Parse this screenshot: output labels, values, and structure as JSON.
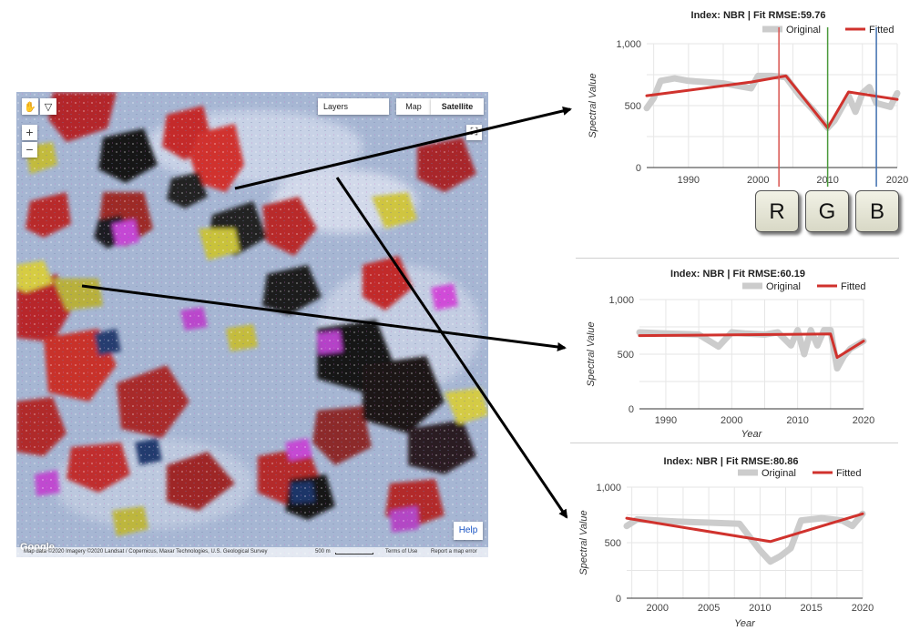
{
  "map": {
    "layers_label": "Layers",
    "map_label": "Map",
    "satellite_label": "Satellite",
    "zoom_in": "+",
    "zoom_out": "−",
    "help_label": "Help",
    "logo": "Google",
    "attribution": "Map data ©2020 Imagery ©2020 Landsat / Copernicus, Maxar Technologies, U.S. Geological Survey",
    "scale": "500 m",
    "terms": "Terms of Use",
    "report": "Report a map error"
  },
  "rgb_buttons": [
    {
      "label": "R",
      "color": "#d9534f",
      "year": 2003
    },
    {
      "label": "G",
      "color": "#4a9a3b",
      "year": 2010
    },
    {
      "label": "B",
      "color": "#3f6fae",
      "year": 2017
    }
  ],
  "chart_data": [
    {
      "type": "line",
      "title": "Index: NBR | Fit RMSE:59.76",
      "xlabel": "",
      "ylabel": "Spectral Value",
      "xlim": [
        1984,
        2020
      ],
      "ylim": [
        0,
        1000
      ],
      "xticks": [
        1990,
        2000,
        2010,
        2020
      ],
      "yticks": [
        0,
        500,
        1000
      ],
      "ytick_labels": [
        "0",
        "500",
        "1,000"
      ],
      "legend_position": "top",
      "grid": true,
      "series": [
        {
          "name": "Original",
          "color": "#cccccc",
          "x": [
            1984,
            1985,
            1986,
            1988,
            1990,
            1995,
            1999,
            2000,
            2002,
            2004,
            2006,
            2008,
            2010,
            2011,
            2013,
            2014,
            2015,
            2016,
            2017,
            2019,
            2020
          ],
          "y": [
            480,
            560,
            700,
            720,
            700,
            680,
            640,
            740,
            740,
            730,
            580,
            460,
            320,
            380,
            580,
            450,
            600,
            650,
            520,
            490,
            600
          ]
        },
        {
          "name": "Fitted",
          "color": "#d0322d",
          "x": [
            1984,
            1999,
            2004,
            2010,
            2013,
            2020
          ],
          "y": [
            580,
            690,
            740,
            320,
            610,
            550
          ]
        }
      ]
    },
    {
      "type": "line",
      "title": "Index: NBR | Fit RMSE:60.19",
      "xlabel": "Year",
      "ylabel": "Spectral Value",
      "xlim": [
        1986,
        2020
      ],
      "ylim": [
        0,
        1000
      ],
      "xticks": [
        1990,
        2000,
        2010,
        2020
      ],
      "yticks": [
        0,
        500,
        1000
      ],
      "ytick_labels": [
        "0",
        "500",
        "1,000"
      ],
      "legend_position": "top",
      "grid": true,
      "series": [
        {
          "name": "Original",
          "color": "#cccccc",
          "x": [
            1986,
            1990,
            1995,
            1998,
            2000,
            2002,
            2005,
            2007,
            2009,
            2010,
            2011,
            2012,
            2013,
            2014,
            2015,
            2016,
            2017,
            2018,
            2020
          ],
          "y": [
            700,
            690,
            680,
            570,
            700,
            690,
            680,
            700,
            580,
            720,
            500,
            720,
            580,
            720,
            720,
            370,
            480,
            550,
            620
          ]
        },
        {
          "name": "Fitted",
          "color": "#d0322d",
          "x": [
            1986,
            2015,
            2016,
            2020
          ],
          "y": [
            670,
            685,
            470,
            620
          ]
        }
      ]
    },
    {
      "type": "line",
      "title": "Index: NBR | Fit RMSE:80.86",
      "xlabel": "Year",
      "ylabel": "Spectral Value",
      "xlim": [
        1997,
        2020
      ],
      "ylim": [
        0,
        1000
      ],
      "xticks": [
        2000,
        2005,
        2010,
        2015,
        2020
      ],
      "yticks": [
        0,
        500,
        1000
      ],
      "ytick_labels": [
        "0",
        "500",
        "1,000"
      ],
      "legend_position": "top",
      "grid": true,
      "series": [
        {
          "name": "Original",
          "color": "#cccccc",
          "x": [
            1997,
            1998,
            2000,
            2002,
            2005,
            2008,
            2010,
            2011,
            2012,
            2013,
            2014,
            2016,
            2018,
            2019,
            2020
          ],
          "y": [
            650,
            710,
            700,
            690,
            680,
            670,
            430,
            330,
            380,
            450,
            700,
            720,
            700,
            650,
            760
          ]
        },
        {
          "name": "Fitted",
          "color": "#d0322d",
          "x": [
            1997,
            2011,
            2020
          ],
          "y": [
            720,
            510,
            760
          ]
        }
      ]
    }
  ]
}
